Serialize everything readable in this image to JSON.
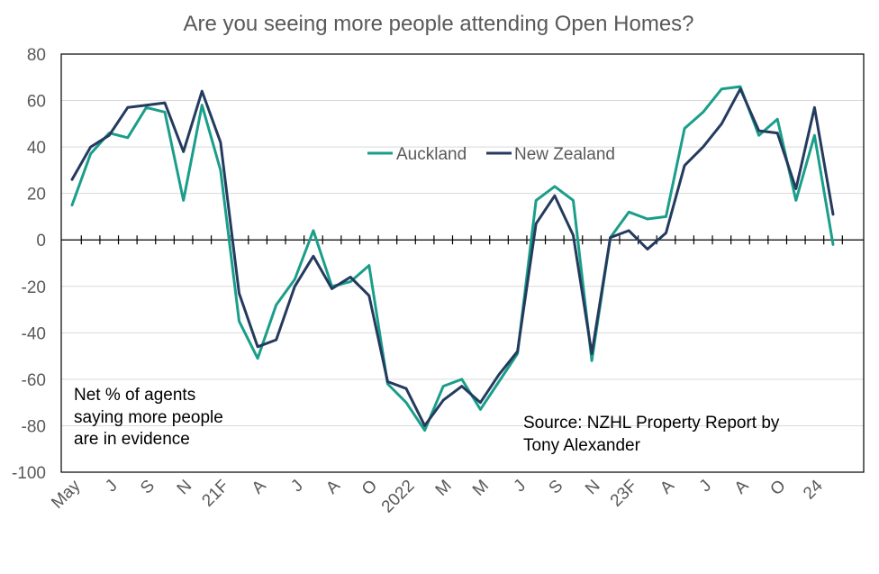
{
  "chart_data": {
    "type": "line",
    "title": "Are you seeing more people attending Open Homes?",
    "ylim": [
      -100,
      80
    ],
    "y_ticks": [
      80,
      60,
      40,
      20,
      0,
      -20,
      -40,
      -60,
      -80,
      -100
    ],
    "x_tick_labels": [
      "May",
      "J",
      "S",
      "N",
      "21F",
      "A",
      "J",
      "A",
      "O",
      "2022",
      "M",
      "M",
      "J",
      "S",
      "N",
      "23F",
      "A",
      "J",
      "A",
      "O",
      "24"
    ],
    "x_tick_label_indices": [
      0,
      2,
      4,
      6,
      8,
      10,
      12,
      14,
      16,
      18,
      20,
      22,
      24,
      26,
      28,
      30,
      32,
      34,
      36,
      38,
      40
    ],
    "legend": {
      "position": "upper-middle",
      "items": [
        "Auckland",
        "New Zealand"
      ]
    },
    "series": [
      {
        "name": "Auckland",
        "color": "#1a9e8a",
        "values": [
          15,
          37,
          46,
          44,
          57,
          55,
          17,
          58,
          30,
          -35,
          -51,
          -28,
          -17,
          4,
          -20,
          -18,
          -11,
          -62,
          -70,
          -82,
          -63,
          -60,
          -73,
          -61,
          -49,
          17,
          23,
          17,
          -52,
          1,
          12,
          9,
          10,
          48,
          55,
          65,
          66,
          45,
          52,
          17,
          45,
          -2
        ]
      },
      {
        "name": "New Zealand",
        "color": "#243a5e",
        "values": [
          26,
          40,
          45,
          57,
          58,
          59,
          38,
          64,
          42,
          -23,
          -46,
          -43,
          -20,
          -7,
          -21,
          -16,
          -24,
          -61,
          -64,
          -80,
          -69,
          -63,
          -70,
          -58,
          -48,
          7,
          19,
          2,
          -49,
          1,
          4,
          -4,
          3,
          32,
          40,
          50,
          65,
          47,
          46,
          22,
          57,
          11
        ]
      }
    ],
    "annotations": [
      {
        "lines": [
          "Net % of agents",
          "saying more people",
          "are in evidence"
        ]
      },
      {
        "lines": [
          "Source: NZHL Property Report by",
          "Tony Alexander"
        ]
      }
    ]
  }
}
